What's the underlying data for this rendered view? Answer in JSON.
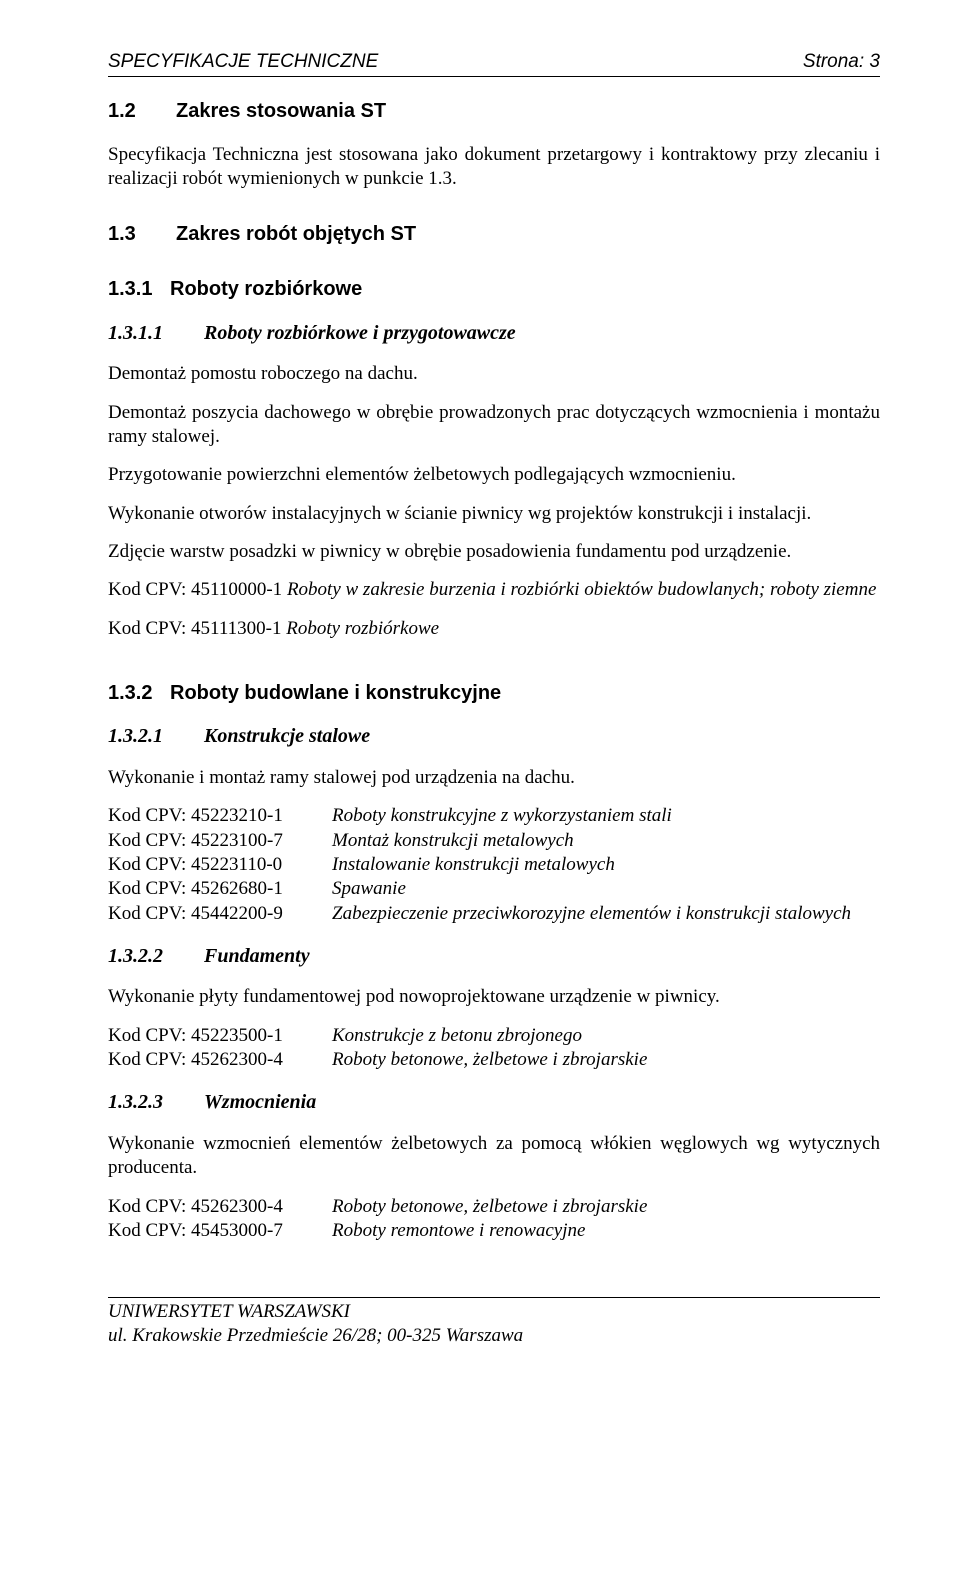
{
  "header": {
    "left": "SPECYFIKACJE TECHNICZNE",
    "right": "Strona: 3"
  },
  "s12": {
    "num": "1.2",
    "title": "Zakres stosowania ST",
    "p1": "Specyfikacja Techniczna jest stosowana jako dokument przetargowy i kontraktowy przy zlecaniu i realizacji robót wymienionych w punkcie 1.3."
  },
  "s13": {
    "num": "1.3",
    "title": "Zakres robót objętych ST"
  },
  "s131": {
    "num": "1.3.1",
    "title": "Roboty rozbiórkowe"
  },
  "s1311": {
    "num": "1.3.1.1",
    "title": "Roboty rozbiórkowe i przygotowawcze",
    "p1": "Demontaż pomostu roboczego na dachu.",
    "p2": "Demontaż poszycia dachowego w obrębie prowadzonych prac dotyczących wzmocnienia i montażu ramy stalowej.",
    "p3": "Przygotowanie powierzchni elementów żelbetowych podlegających wzmocnieniu.",
    "p4": "Wykonanie otworów instalacyjnych w ścianie piwnicy wg projektów konstrukcji i instalacji.",
    "p5": "Zdjęcie warstw posadzki w piwnicy w obrębie posadowienia fundamentu pod urządzenie.",
    "cpv1_code": "Kod CPV: 45110000-1 ",
    "cpv1_desc": "Roboty w zakresie burzenia i rozbiórki obiektów budowlanych; roboty ziemne",
    "cpv2_code": "Kod CPV: 45111300-1 ",
    "cpv2_desc": "Roboty rozbiórkowe"
  },
  "s132": {
    "num": "1.3.2",
    "title": "Roboty budowlane i konstrukcyjne"
  },
  "s1321": {
    "num": "1.3.2.1",
    "title": "Konstrukcje stalowe",
    "p1": "Wykonanie i montaż ramy stalowej pod urządzenia na dachu.",
    "cpv": [
      {
        "code": "Kod CPV: 45223210-1",
        "desc": "Roboty konstrukcyjne z wykorzystaniem stali"
      },
      {
        "code": "Kod CPV: 45223100-7",
        "desc": "Montaż konstrukcji metalowych"
      },
      {
        "code": "Kod CPV: 45223110-0",
        "desc": "Instalowanie konstrukcji metalowych"
      },
      {
        "code": "Kod CPV: 45262680-1",
        "desc": "Spawanie"
      },
      {
        "code": "Kod CPV: 45442200-9",
        "desc": "Zabezpieczenie przeciwkorozyjne elementów i konstrukcji stalowych"
      }
    ]
  },
  "s1322": {
    "num": "1.3.2.2",
    "title": "Fundamenty",
    "p1": "Wykonanie płyty fundamentowej pod nowoprojektowane urządzenie w piwnicy.",
    "cpv": [
      {
        "code": "Kod CPV: 45223500-1",
        "desc": "Konstrukcje z betonu zbrojonego"
      },
      {
        "code": "Kod CPV: 45262300-4",
        "desc": "Roboty betonowe, żelbetowe i zbrojarskie"
      }
    ]
  },
  "s1323": {
    "num": "1.3.2.3",
    "title": "Wzmocnienia",
    "p1": "Wykonanie wzmocnień elementów żelbetowych za pomocą włókien węglowych wg wytycznych producenta.",
    "cpv": [
      {
        "code": "Kod CPV: 45262300-4",
        "desc": "Roboty betonowe, żelbetowe i zbrojarskie"
      },
      {
        "code": "Kod CPV: 45453000-7",
        "desc": "Roboty remontowe i renowacyjne"
      }
    ]
  },
  "footer": {
    "l1": "UNIWERSYTET WARSZAWSKI",
    "l2": "ul. Krakowskie Przedmieście 26/28; 00-325 Warszawa"
  }
}
